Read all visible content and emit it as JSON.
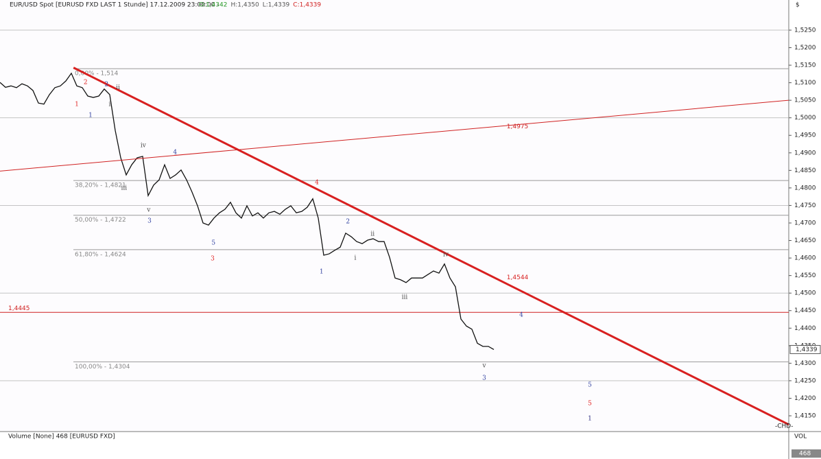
{
  "chart_data": {
    "type": "line",
    "title": "EUR/USD Spot [EURUSD FXD LAST 1 Stunde] 17.12.2009 23:00:00 -",
    "ohlc_labels": [
      {
        "text": "O:1,4342",
        "color": "#2a9a2a"
      },
      {
        "text": "H:1,4350",
        "color": "#555555"
      },
      {
        "text": "L:1,4339",
        "color": "#555555"
      },
      {
        "text": "C:1,4339",
        "color": "#d02020"
      }
    ],
    "currency": "$",
    "last_price": {
      "value": 1.4339,
      "label": "1,4339"
    },
    "series": [
      {
        "name": "EUR/USD",
        "color": "#111111",
        "values": [
          1.5101,
          1.5087,
          1.5091,
          1.5086,
          1.5097,
          1.5091,
          1.5078,
          1.5042,
          1.5039,
          1.5066,
          1.5086,
          1.5091,
          1.5105,
          1.5127,
          1.5091,
          1.5086,
          1.5062,
          1.5058,
          1.5062,
          1.5082,
          1.5066,
          1.4964,
          1.4886,
          1.4837,
          1.4866,
          1.4886,
          1.489,
          1.4778,
          1.4808,
          1.4823,
          1.4866,
          1.4827,
          1.4837,
          1.4851,
          1.4823,
          1.4788,
          1.4749,
          1.47,
          1.4694,
          1.4714,
          1.4729,
          1.4739,
          1.4759,
          1.4729,
          1.4714,
          1.4749,
          1.472,
          1.4729,
          1.4714,
          1.4729,
          1.4733,
          1.4725,
          1.4739,
          1.4749,
          1.4729,
          1.4733,
          1.4745,
          1.4769,
          1.4714,
          1.4608,
          1.4612,
          1.4622,
          1.4631,
          1.4671,
          1.4661,
          1.4647,
          1.4641,
          1.4651,
          1.4655,
          1.4647,
          1.4647,
          1.4602,
          1.4543,
          1.4538,
          1.453,
          1.4543,
          1.4543,
          1.4543,
          1.4553,
          1.4563,
          1.4557,
          1.4583,
          1.4543,
          1.4518,
          1.4426,
          1.4406,
          1.4397,
          1.4357,
          1.4348,
          1.4348,
          1.4339
        ]
      }
    ],
    "ylim": [
      1.4107,
      1.5336
    ],
    "yticks": [
      {
        "value": 1.415,
        "label": "1,4150"
      },
      {
        "value": 1.42,
        "label": "1,4200"
      },
      {
        "value": 1.425,
        "label": "1,4250"
      },
      {
        "value": 1.43,
        "label": "1,4300"
      },
      {
        "value": 1.435,
        "label": "1,4350"
      },
      {
        "value": 1.44,
        "label": "1,4400"
      },
      {
        "value": 1.445,
        "label": "1,4450"
      },
      {
        "value": 1.45,
        "label": "1,4500"
      },
      {
        "value": 1.455,
        "label": "1,4550"
      },
      {
        "value": 1.46,
        "label": "1,4600"
      },
      {
        "value": 1.465,
        "label": "1,4650"
      },
      {
        "value": 1.47,
        "label": "1,4700"
      },
      {
        "value": 1.475,
        "label": "1,4750"
      },
      {
        "value": 1.48,
        "label": "1,4800"
      },
      {
        "value": 1.485,
        "label": "1,4850"
      },
      {
        "value": 1.49,
        "label": "1,4900"
      },
      {
        "value": 1.495,
        "label": "1,4950"
      },
      {
        "value": 1.5,
        "label": "1,5000"
      },
      {
        "value": 1.505,
        "label": "1,5050"
      },
      {
        "value": 1.51,
        "label": "1,5100"
      },
      {
        "value": 1.515,
        "label": "1,5150"
      },
      {
        "value": 1.52,
        "label": "1,5200"
      },
      {
        "value": 1.525,
        "label": "1,5250"
      }
    ],
    "grid_levels": [
      1.525,
      1.5,
      1.475,
      1.45,
      1.425
    ],
    "levels": [
      {
        "value": 1.514,
        "label": "0,00% - 1,514",
        "color": "#999999"
      },
      {
        "value": 1.4821,
        "label": "38,20% - 1,4821",
        "color": "#999999"
      },
      {
        "value": 1.4722,
        "label": "50,00% - 1,4722",
        "color": "#999999"
      },
      {
        "value": 1.4624,
        "label": "61,80% - 1,4624",
        "color": "#999999"
      },
      {
        "value": 1.4304,
        "label": "100,00% - 1,4304",
        "color": "#999999"
      },
      {
        "value": 1.4445,
        "label": "1,4445",
        "color": "#d02020"
      }
    ],
    "trendlines": [
      {
        "from": [
          13.4,
          1.5143
        ],
        "to": [
          143.75,
          1.4125
        ],
        "color": "#d82020",
        "width": 3,
        "label": "1,4544",
        "label_at": [
          91.6,
          1.4544
        ]
      },
      {
        "from": [
          0,
          1.4848
        ],
        "to": [
          143.75,
          1.505
        ],
        "color": "#d02020",
        "width": 1,
        "label": "1,4975",
        "label_at": [
          91.6,
          1.4975
        ]
      }
    ],
    "annotations": [
      {
        "text": "1",
        "color": "#e02020",
        "size": 16,
        "x": 14,
        "y": 1.5039
      },
      {
        "text": "2",
        "color": "#e02020",
        "size": 16,
        "x": 15.6,
        "y": 1.5101
      },
      {
        "text": "3",
        "color": "#e02020",
        "size": 16,
        "x": 38.75,
        "y": 1.4598
      },
      {
        "text": "4",
        "color": "#e02020",
        "size": 16,
        "x": 57.75,
        "y": 1.4815
      },
      {
        "text": "5",
        "color": "#e02020",
        "size": 18,
        "x": 107.5,
        "y": 1.4185
      },
      {
        "text": "1",
        "color": "#2a2a80",
        "size": 18,
        "x": 107.5,
        "y": 1.4142
      },
      {
        "text": "1",
        "color": "#3040a0",
        "size": 13,
        "x": 16.5,
        "y": 1.5007
      },
      {
        "text": "2",
        "color": "#3040a0",
        "size": 13,
        "x": 19.4,
        "y": 1.5095
      },
      {
        "text": "4",
        "color": "#3040a0",
        "size": 13,
        "x": 31.9,
        "y": 1.4902
      },
      {
        "text": "3",
        "color": "#3040a0",
        "size": 13,
        "x": 27.25,
        "y": 1.4706
      },
      {
        "text": "5",
        "color": "#3040a0",
        "size": 13,
        "x": 38.9,
        "y": 1.4643
      },
      {
        "text": "1",
        "color": "#3040a0",
        "size": 13,
        "x": 58.6,
        "y": 1.4561
      },
      {
        "text": "2",
        "color": "#3040a0",
        "size": 13,
        "x": 63.4,
        "y": 1.4704
      },
      {
        "text": "3",
        "color": "#3040a0",
        "size": 13,
        "x": 88.25,
        "y": 1.4258
      },
      {
        "text": "4",
        "color": "#3040a0",
        "size": 13,
        "x": 95,
        "y": 1.4438
      },
      {
        "text": "5",
        "color": "#3040a0",
        "size": 13,
        "x": 107.5,
        "y": 1.4238
      },
      {
        "text": "i",
        "color": "#444444",
        "size": 9,
        "x": 20,
        "y": 1.5039
      },
      {
        "text": "ii",
        "color": "#444444",
        "size": 9,
        "x": 21.5,
        "y": 1.5086
      },
      {
        "text": "iv",
        "color": "#444444",
        "size": 9,
        "x": 26.1,
        "y": 1.4921
      },
      {
        "text": "iii",
        "color": "#444444",
        "size": 9,
        "x": 22.6,
        "y": 1.48
      },
      {
        "text": "v",
        "color": "#444444",
        "size": 9,
        "x": 27.1,
        "y": 1.4737
      },
      {
        "text": "i",
        "color": "#444444",
        "size": 9,
        "x": 64.75,
        "y": 1.46
      },
      {
        "text": "ii",
        "color": "#444444",
        "size": 9,
        "x": 67.9,
        "y": 1.4669
      },
      {
        "text": "iii",
        "color": "#444444",
        "size": 9,
        "x": 73.75,
        "y": 1.4489
      },
      {
        "text": "iv",
        "color": "#444444",
        "size": 9,
        "x": 81.25,
        "y": 1.461
      },
      {
        "text": "v",
        "color": "#444444",
        "size": 9,
        "x": 88.25,
        "y": 1.4293
      }
    ],
    "volume_title": "Volume [None] 468 [EURUSD FXD]",
    "volume_axis": "VOL",
    "volume_last": "468",
    "corner_tag": "-CHD-"
  }
}
